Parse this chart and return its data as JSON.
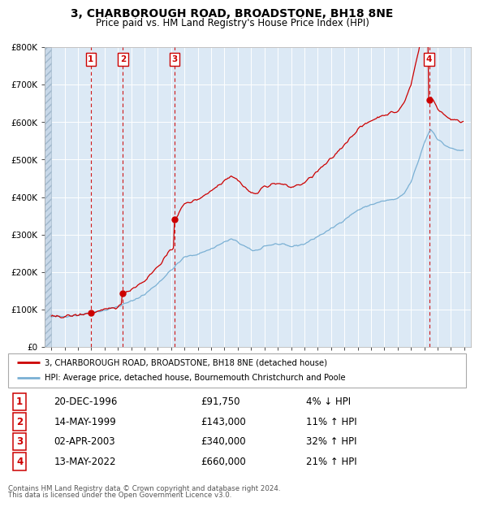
{
  "title": "3, CHARBOROUGH ROAD, BROADSTONE, BH18 8NE",
  "subtitle": "Price paid vs. HM Land Registry's House Price Index (HPI)",
  "legend_line1": "3, CHARBOROUGH ROAD, BROADSTONE, BH18 8NE (detached house)",
  "legend_line2": "HPI: Average price, detached house, Bournemouth Christchurch and Poole",
  "footer_line1": "Contains HM Land Registry data © Crown copyright and database right 2024.",
  "footer_line2": "This data is licensed under the Open Government Licence v3.0.",
  "sales": [
    {
      "num": 1,
      "date": "20-DEC-1996",
      "price": 91750,
      "pct": "4%",
      "dir": "↓",
      "year": 1996.97
    },
    {
      "num": 2,
      "date": "14-MAY-1999",
      "price": 143000,
      "pct": "11%",
      "dir": "↑",
      "year": 1999.37
    },
    {
      "num": 3,
      "date": "02-APR-2003",
      "price": 340000,
      "pct": "32%",
      "dir": "↑",
      "year": 2003.25
    },
    {
      "num": 4,
      "date": "13-MAY-2022",
      "price": 660000,
      "pct": "21%",
      "dir": "↑",
      "year": 2022.37
    }
  ],
  "bg_color": "#dce9f5",
  "grid_color": "#ffffff",
  "red_color": "#cc0000",
  "blue_color": "#7ab0d4",
  "xlim": [
    1993.5,
    2025.5
  ],
  "ylim": [
    0,
    800000
  ],
  "yticks": [
    0,
    100000,
    200000,
    300000,
    400000,
    500000,
    600000,
    700000,
    800000
  ],
  "ytick_labels": [
    "£0",
    "£100K",
    "£200K",
    "£300K",
    "£400K",
    "£500K",
    "£600K",
    "£700K",
    "£800K"
  ],
  "xticks": [
    1994,
    1995,
    1996,
    1997,
    1998,
    1999,
    2000,
    2001,
    2002,
    2003,
    2004,
    2005,
    2006,
    2007,
    2008,
    2009,
    2010,
    2011,
    2012,
    2013,
    2014,
    2015,
    2016,
    2017,
    2018,
    2019,
    2020,
    2021,
    2022,
    2023,
    2024,
    2025
  ]
}
